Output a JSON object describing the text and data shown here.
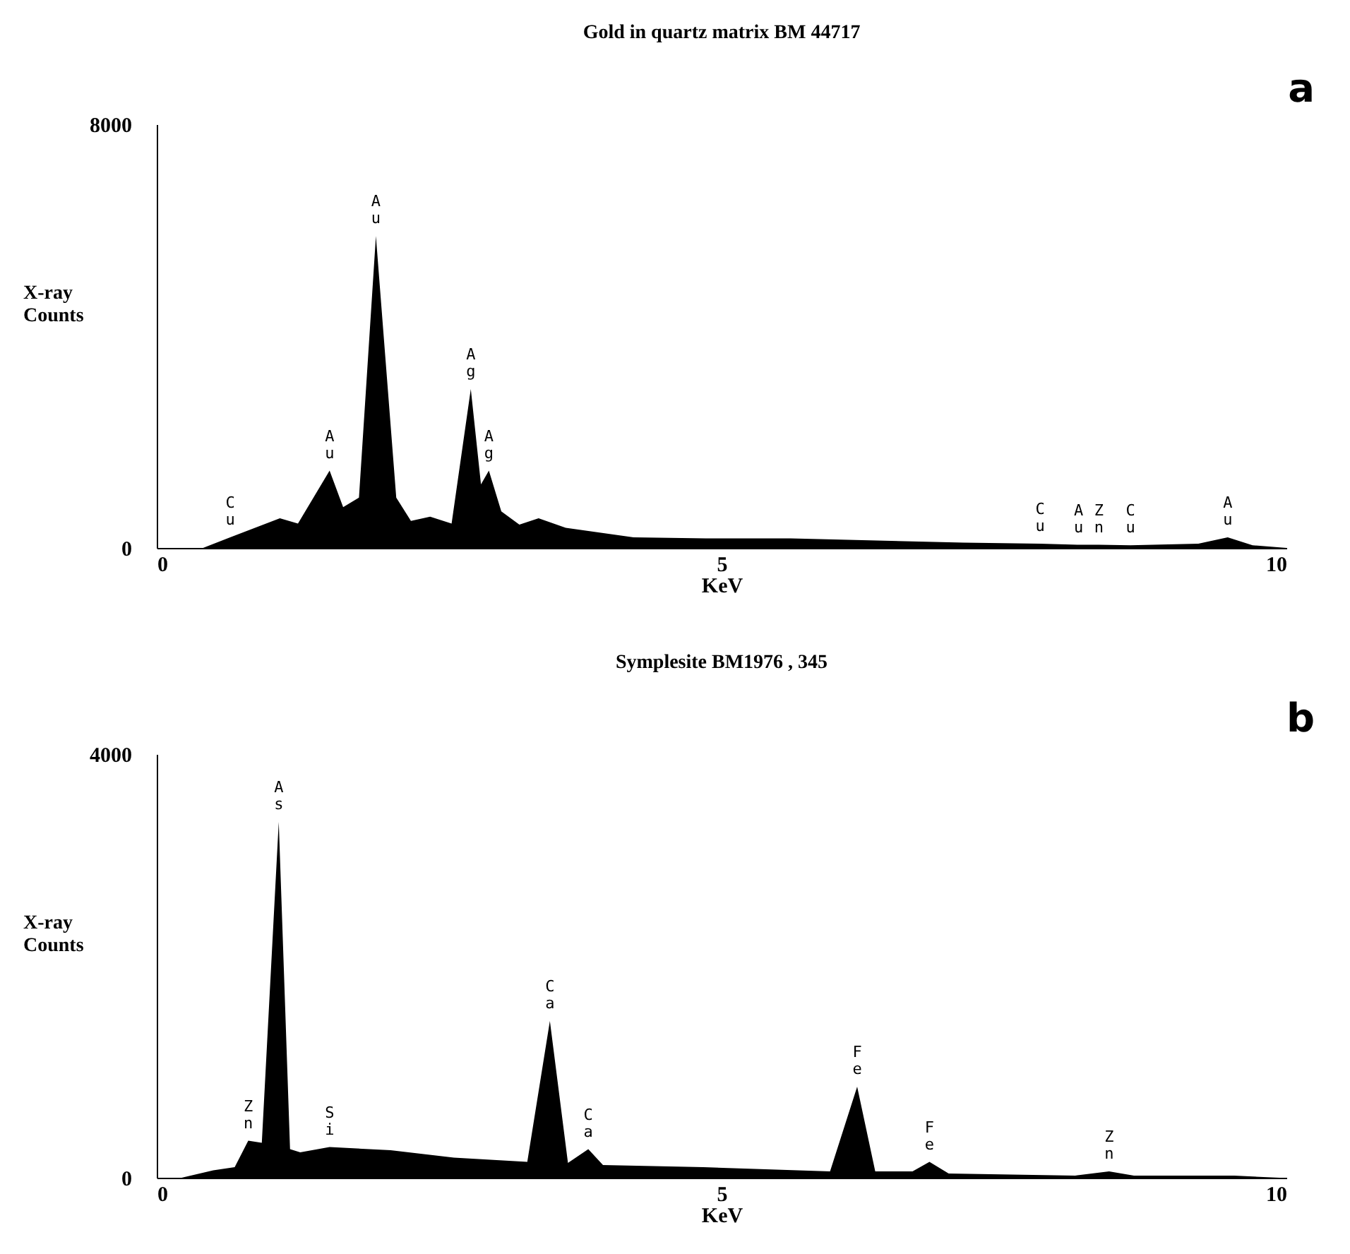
{
  "chart_data": [
    {
      "type": "area",
      "title": "Gold in quartz matrix        BM 44717",
      "xlabel": "KeV",
      "ylabel": "X-ray Counts",
      "xlim": [
        0,
        10
      ],
      "xticks": [
        0,
        5,
        10
      ],
      "ylim": [
        0,
        8000
      ],
      "yticks": [
        0,
        8000
      ],
      "grid": false,
      "series": [
        {
          "color": "#000000",
          "x": [
            0.41,
            0.65,
            1.09,
            1.25,
            1.53,
            1.65,
            1.79,
            1.94,
            2.12,
            2.25,
            2.42,
            2.61,
            2.78,
            2.87,
            2.94,
            3.05,
            3.21,
            3.38,
            3.62,
            4.22,
            4.86,
            5.61,
            7.14,
            7.82,
            8.16,
            8.34,
            8.62,
            9.22,
            9.48,
            9.7,
            10.0
          ],
          "values": [
            0,
            200,
            560,
            460,
            1460,
            770,
            950,
            5890,
            950,
            510,
            590,
            460,
            3000,
            1200,
            1460,
            690,
            440,
            560,
            380,
            200,
            180,
            180,
            100,
            80,
            60,
            60,
            50,
            80,
            200,
            50,
            0
          ]
        }
      ],
      "annotations": [
        "a",
        {
          "text": "Cu",
          "x": 0.65,
          "y": 200
        },
        {
          "text": "Au",
          "x": 1.53,
          "y": 1460
        },
        {
          "text": "Au",
          "x": 1.94,
          "y": 5890
        },
        {
          "text": "Ag",
          "x": 2.78,
          "y": 3000
        },
        {
          "text": "Ag",
          "x": 2.94,
          "y": 1460
        },
        {
          "text": "Cu",
          "x": 7.82,
          "y": 80
        },
        {
          "text": "Au",
          "x": 8.16,
          "y": 60
        },
        {
          "text": "Zn",
          "x": 8.34,
          "y": 60
        },
        {
          "text": "Cu",
          "x": 8.62,
          "y": 50
        },
        {
          "text": "Au",
          "x": 9.48,
          "y": 200
        }
      ]
    },
    {
      "type": "area",
      "title": "Symplesite BM1976 , 345",
      "xlabel": "KeV",
      "ylabel": "X-ray Counts",
      "xlim": [
        0,
        10
      ],
      "xticks": [
        0,
        5,
        10
      ],
      "ylim": [
        0,
        4000
      ],
      "yticks": [
        0,
        4000
      ],
      "grid": false,
      "series": [
        {
          "color": "#000000",
          "x": [
            0.22,
            0.5,
            0.69,
            0.81,
            0.93,
            1.08,
            1.18,
            1.27,
            1.53,
            2.07,
            2.63,
            3.28,
            3.48,
            3.64,
            3.82,
            3.95,
            4.84,
            5.96,
            6.2,
            6.36,
            6.69,
            6.84,
            7.01,
            8.13,
            8.43,
            8.65,
            9.54,
            9.94
          ],
          "values": [
            0,
            70,
            100,
            350,
            330,
            3360,
            270,
            240,
            290,
            260,
            190,
            150,
            1480,
            140,
            270,
            120,
            100,
            60,
            860,
            60,
            60,
            150,
            40,
            20,
            60,
            20,
            20,
            0
          ]
        }
      ],
      "annotations": [
        "b",
        {
          "text": "Zn",
          "x": 0.81,
          "y": 350
        },
        {
          "text": "As",
          "x": 1.08,
          "y": 3360
        },
        {
          "text": "Si",
          "x": 1.53,
          "y": 290
        },
        {
          "text": "Ca",
          "x": 3.48,
          "y": 1480
        },
        {
          "text": "Ca",
          "x": 3.82,
          "y": 270
        },
        {
          "text": "Fe",
          "x": 6.2,
          "y": 860
        },
        {
          "text": "Fe",
          "x": 6.84,
          "y": 150
        },
        {
          "text": "Zn",
          "x": 8.43,
          "y": 60
        }
      ]
    }
  ]
}
